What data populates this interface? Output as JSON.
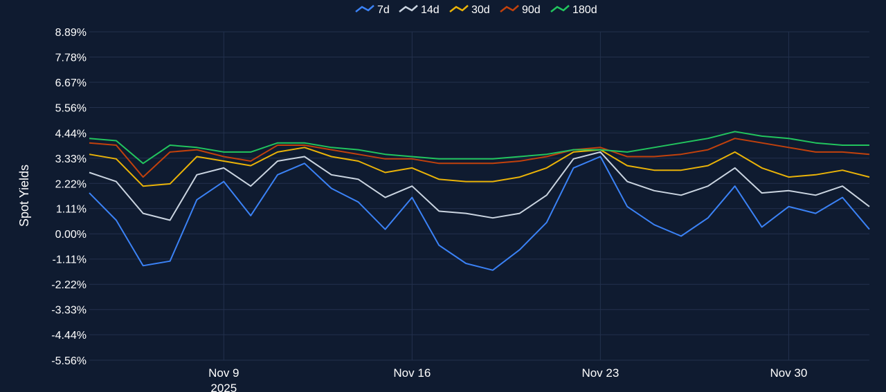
{
  "chart_data": {
    "type": "line",
    "ylabel": "Spot Yields",
    "x_range": [
      "2025-11-04",
      "2025-12-03"
    ],
    "ylim": [
      -5.56,
      8.89
    ],
    "yticks": [
      "8.89%",
      "7.78%",
      "6.67%",
      "5.56%",
      "4.44%",
      "3.33%",
      "2.22%",
      "1.11%",
      "0.00%",
      "-1.11%",
      "-2.22%",
      "-3.33%",
      "-4.44%",
      "-5.56%"
    ],
    "ytick_values": [
      8.89,
      7.78,
      6.67,
      5.56,
      4.44,
      3.33,
      2.22,
      1.11,
      0.0,
      -1.11,
      -2.22,
      -3.33,
      -4.44,
      -5.56
    ],
    "xticks": [
      {
        "date": "2025-11-09",
        "label": "Nov 9",
        "sublabel": "2025"
      },
      {
        "date": "2025-11-16",
        "label": "Nov 16",
        "sublabel": ""
      },
      {
        "date": "2025-11-23",
        "label": "Nov 23",
        "sublabel": ""
      },
      {
        "date": "2025-11-30",
        "label": "Nov 30",
        "sublabel": ""
      }
    ],
    "grid": true,
    "legend_position": "top-center",
    "series": [
      {
        "name": "7d",
        "color": "#3b82f6",
        "x": [
          "2025-11-04",
          "2025-11-05",
          "2025-11-06",
          "2025-11-07",
          "2025-11-08",
          "2025-11-09",
          "2025-11-10",
          "2025-11-11",
          "2025-11-12",
          "2025-11-13",
          "2025-11-14",
          "2025-11-15",
          "2025-11-16",
          "2025-11-17",
          "2025-11-18",
          "2025-11-19",
          "2025-11-20",
          "2025-11-21",
          "2025-11-22",
          "2025-11-23",
          "2025-11-24",
          "2025-11-25",
          "2025-11-26",
          "2025-11-27",
          "2025-11-28",
          "2025-11-29",
          "2025-11-30",
          "2025-12-01",
          "2025-12-02",
          "2025-12-03"
        ],
        "y": [
          1.8,
          0.6,
          -1.4,
          -1.2,
          1.5,
          2.3,
          0.8,
          2.6,
          3.1,
          2.0,
          1.4,
          0.2,
          1.6,
          -0.5,
          -1.3,
          -1.6,
          -0.7,
          0.5,
          2.9,
          3.4,
          1.2,
          0.4,
          -0.1,
          0.7,
          2.1,
          0.3,
          1.2,
          0.9,
          1.6,
          0.2
        ]
      },
      {
        "name": "14d",
        "color": "#cbd5e1",
        "x": [
          "2025-11-04",
          "2025-11-05",
          "2025-11-06",
          "2025-11-07",
          "2025-11-08",
          "2025-11-09",
          "2025-11-10",
          "2025-11-11",
          "2025-11-12",
          "2025-11-13",
          "2025-11-14",
          "2025-11-15",
          "2025-11-16",
          "2025-11-17",
          "2025-11-18",
          "2025-11-19",
          "2025-11-20",
          "2025-11-21",
          "2025-11-22",
          "2025-11-23",
          "2025-11-24",
          "2025-11-25",
          "2025-11-26",
          "2025-11-27",
          "2025-11-28",
          "2025-11-29",
          "2025-11-30",
          "2025-12-01",
          "2025-12-02",
          "2025-12-03"
        ],
        "y": [
          2.7,
          2.3,
          0.9,
          0.6,
          2.6,
          2.9,
          2.1,
          3.2,
          3.4,
          2.6,
          2.4,
          1.6,
          2.1,
          1.0,
          0.9,
          0.7,
          0.9,
          1.7,
          3.3,
          3.6,
          2.3,
          1.9,
          1.7,
          2.1,
          2.9,
          1.8,
          1.9,
          1.7,
          2.1,
          1.2
        ]
      },
      {
        "name": "30d",
        "color": "#eab308",
        "x": [
          "2025-11-04",
          "2025-11-05",
          "2025-11-06",
          "2025-11-07",
          "2025-11-08",
          "2025-11-09",
          "2025-11-10",
          "2025-11-11",
          "2025-11-12",
          "2025-11-13",
          "2025-11-14",
          "2025-11-15",
          "2025-11-16",
          "2025-11-17",
          "2025-11-18",
          "2025-11-19",
          "2025-11-20",
          "2025-11-21",
          "2025-11-22",
          "2025-11-23",
          "2025-11-24",
          "2025-11-25",
          "2025-11-26",
          "2025-11-27",
          "2025-11-28",
          "2025-11-29",
          "2025-11-30",
          "2025-12-01",
          "2025-12-02",
          "2025-12-03"
        ],
        "y": [
          3.5,
          3.3,
          2.1,
          2.2,
          3.4,
          3.2,
          3.0,
          3.6,
          3.8,
          3.4,
          3.2,
          2.7,
          2.9,
          2.4,
          2.3,
          2.3,
          2.5,
          2.9,
          3.6,
          3.7,
          3.0,
          2.8,
          2.8,
          3.0,
          3.6,
          2.9,
          2.5,
          2.6,
          2.8,
          2.5
        ]
      },
      {
        "name": "90d",
        "color": "#c2410c",
        "x": [
          "2025-11-04",
          "2025-11-05",
          "2025-11-06",
          "2025-11-07",
          "2025-11-08",
          "2025-11-09",
          "2025-11-10",
          "2025-11-11",
          "2025-11-12",
          "2025-11-13",
          "2025-11-14",
          "2025-11-15",
          "2025-11-16",
          "2025-11-17",
          "2025-11-18",
          "2025-11-19",
          "2025-11-20",
          "2025-11-21",
          "2025-11-22",
          "2025-11-23",
          "2025-11-24",
          "2025-11-25",
          "2025-11-26",
          "2025-11-27",
          "2025-11-28",
          "2025-11-29",
          "2025-11-30",
          "2025-12-01",
          "2025-12-02",
          "2025-12-03"
        ],
        "y": [
          4.0,
          3.9,
          2.5,
          3.6,
          3.7,
          3.4,
          3.2,
          3.9,
          3.9,
          3.7,
          3.5,
          3.3,
          3.3,
          3.1,
          3.1,
          3.1,
          3.2,
          3.4,
          3.7,
          3.8,
          3.4,
          3.4,
          3.5,
          3.7,
          4.2,
          4.0,
          3.8,
          3.6,
          3.6,
          3.5
        ]
      },
      {
        "name": "180d",
        "color": "#22c55e",
        "x": [
          "2025-11-04",
          "2025-11-05",
          "2025-11-06",
          "2025-11-07",
          "2025-11-08",
          "2025-11-09",
          "2025-11-10",
          "2025-11-11",
          "2025-11-12",
          "2025-11-13",
          "2025-11-14",
          "2025-11-15",
          "2025-11-16",
          "2025-11-17",
          "2025-11-18",
          "2025-11-19",
          "2025-11-20",
          "2025-11-21",
          "2025-11-22",
          "2025-11-23",
          "2025-11-24",
          "2025-11-25",
          "2025-11-26",
          "2025-11-27",
          "2025-11-28",
          "2025-11-29",
          "2025-11-30",
          "2025-12-01",
          "2025-12-02",
          "2025-12-03"
        ],
        "y": [
          4.2,
          4.1,
          3.1,
          3.9,
          3.8,
          3.6,
          3.6,
          4.0,
          4.0,
          3.8,
          3.7,
          3.5,
          3.4,
          3.3,
          3.3,
          3.3,
          3.4,
          3.5,
          3.7,
          3.7,
          3.6,
          3.8,
          4.0,
          4.2,
          4.5,
          4.3,
          4.2,
          4.0,
          3.9,
          3.9
        ]
      }
    ]
  }
}
